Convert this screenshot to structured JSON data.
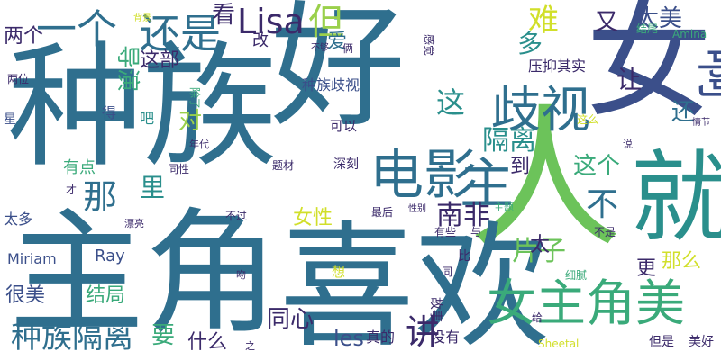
{
  "colors": {
    "background": "#ffffff",
    "palette": [
      "#3b4f8a",
      "#2f6f8e",
      "#2a8f8c",
      "#3aaa7a",
      "#6cc35a",
      "#9ad04b",
      "#d1df2a",
      "#3b2a6a"
    ]
  },
  "words": [
    {
      "text": "种族",
      "color": "#2f6f8e"
    },
    {
      "text": "好",
      "color": "#2f6f8e"
    },
    {
      "text": "女",
      "color": "#3b4f8a"
    },
    {
      "text": "人",
      "color": "#6cc35a"
    },
    {
      "text": "主角",
      "color": "#2f6f8e"
    },
    {
      "text": "喜欢",
      "color": "#2f6f8e"
    },
    {
      "text": "就",
      "color": "#2a8f8c"
    },
    {
      "text": "电影",
      "color": "#2f6f8e"
    },
    {
      "text": "主",
      "color": "#2f6f8e"
    },
    {
      "text": "女主角美",
      "color": "#3aaa7a"
    },
    {
      "text": "歧视",
      "color": "#2f6f8e"
    },
    {
      "text": "啊",
      "color": "#3b4f8a"
    },
    {
      "text": "还是",
      "color": "#2f6f8e"
    },
    {
      "text": "Lisa",
      "color": "#3b2a6a"
    },
    {
      "text": "一个",
      "color": "#2f6f8e"
    },
    {
      "text": "但",
      "color": "#9ad04b"
    },
    {
      "text": "难",
      "color": "#d1df2a"
    },
    {
      "text": "种族隔离",
      "color": "#2f6f8e"
    },
    {
      "text": "那",
      "color": "#2f6f8e"
    },
    {
      "text": "不",
      "color": "#2f6f8e"
    },
    {
      "text": "这",
      "color": "#2a8f8c"
    },
    {
      "text": "隔离",
      "color": "#2a8f8c"
    },
    {
      "text": "南非",
      "color": "#3b2a6a"
    },
    {
      "text": "片子",
      "color": "#6cc35a"
    },
    {
      "text": "讲",
      "color": "#3b2a6a"
    },
    {
      "text": "太美",
      "color": "#3b4f8a"
    },
    {
      "text": "看",
      "color": "#3b2a6a"
    },
    {
      "text": "又",
      "color": "#3b2a6a"
    },
    {
      "text": "多",
      "color": "#2a8f8c"
    },
    {
      "text": "让",
      "color": "#3b2a6a"
    },
    {
      "text": "还",
      "color": "#2f6f8e"
    },
    {
      "text": "这个",
      "color": "#3aaa7a"
    },
    {
      "text": "到",
      "color": "#3b2a6a"
    },
    {
      "text": "太",
      "color": "#3b2a6a"
    },
    {
      "text": "里",
      "color": "#2a8f8c"
    },
    {
      "text": "对",
      "color": "#9ad04b"
    },
    {
      "text": "导演",
      "color": "#3aaa7a"
    },
    {
      "text": "这部",
      "color": "#3b2a6a"
    },
    {
      "text": "两个",
      "color": "#3b2a6a"
    },
    {
      "text": "女性",
      "color": "#d1df2a"
    },
    {
      "text": "结局",
      "color": "#3aaa7a"
    },
    {
      "text": "很美",
      "color": "#3b4f8a"
    },
    {
      "text": "要",
      "color": "#3aaa7a"
    },
    {
      "text": "同心",
      "color": "#3b2a6a"
    },
    {
      "text": "什么",
      "color": "#3b2a6a"
    },
    {
      "text": "les",
      "color": "#3b4f8a"
    },
    {
      "text": "真的",
      "color": "#3b2a6a"
    },
    {
      "text": "没有",
      "color": "#3b2a6a"
    },
    {
      "text": "更",
      "color": "#3b2a6a"
    },
    {
      "text": "那么",
      "color": "#d1df2a"
    },
    {
      "text": "Ray",
      "color": "#3b4f8a"
    },
    {
      "text": "Miriam",
      "color": "#3b4f8a"
    },
    {
      "text": "太多",
      "color": "#3b4f8a"
    },
    {
      "text": "有点",
      "color": "#3aaa7a"
    },
    {
      "text": "爱",
      "color": "#2f6f8e"
    },
    {
      "text": "改",
      "color": "#3b2a6a"
    },
    {
      "text": "种族歧视",
      "color": "#3b4f8a"
    },
    {
      "text": "压抑",
      "color": "#3b2a6a"
    },
    {
      "text": "其实",
      "color": "#3b2a6a"
    },
    {
      "text": "Amina",
      "color": "#3aaa7a"
    },
    {
      "text": "结尾",
      "color": "#3aaa7a"
    },
    {
      "text": "Sheetal",
      "color": "#d1df2a"
    },
    {
      "text": "但是",
      "color": "#3b2a6a"
    },
    {
      "text": "美好",
      "color": "#3b2a6a"
    },
    {
      "text": "星",
      "color": "#3b4f8a"
    },
    {
      "text": "得",
      "color": "#3b4f8a"
    },
    {
      "text": "吧",
      "color": "#2a8f8c"
    },
    {
      "text": "可以",
      "color": "#3b2a6a"
    },
    {
      "text": "深刻",
      "color": "#3b2a6a"
    },
    {
      "text": "题材",
      "color": "#3b2a6a"
    },
    {
      "text": "同性",
      "color": "#3b2a6a"
    },
    {
      "text": "年代",
      "color": "#3b2a6a"
    },
    {
      "text": "两位",
      "color": "#3b2a6a"
    },
    {
      "text": "背景",
      "color": "#d1df2a"
    },
    {
      "text": "不够",
      "color": "#3b2a6a"
    },
    {
      "text": "俩",
      "color": "#3b2a6a"
    },
    {
      "text": "感觉",
      "color": "#3b2a6a"
    },
    {
      "text": "除了",
      "color": "#3aaa7a"
    },
    {
      "text": "这么",
      "color": "#d1df2a"
    },
    {
      "text": "情节",
      "color": "#3b2a6a"
    },
    {
      "text": "说",
      "color": "#3b2a6a"
    },
    {
      "text": "才",
      "color": "#3b2a6a"
    },
    {
      "text": "不过",
      "color": "#3b2a6a"
    },
    {
      "text": "最后",
      "color": "#3b2a6a"
    },
    {
      "text": "性别",
      "color": "#3b2a6a"
    },
    {
      "text": "主题",
      "color": "#3aaa7a"
    },
    {
      "text": "漂亮",
      "color": "#3b2a6a"
    },
    {
      "text": "有些",
      "color": "#3b2a6a"
    },
    {
      "text": "与",
      "color": "#3b2a6a"
    },
    {
      "text": "不是",
      "color": "#3b2a6a"
    },
    {
      "text": "比",
      "color": "#3b2a6a"
    },
    {
      "text": "同",
      "color": "#3b2a6a"
    },
    {
      "text": "想",
      "color": "#d1df2a"
    },
    {
      "text": "吻",
      "color": "#3b2a6a"
    },
    {
      "text": "细腻",
      "color": "#3aaa7a"
    },
    {
      "text": "故事",
      "color": "#3b2a6a"
    },
    {
      "text": "给",
      "color": "#3b2a6a"
    },
    {
      "text": "之",
      "color": "#3b2a6a"
    }
  ]
}
